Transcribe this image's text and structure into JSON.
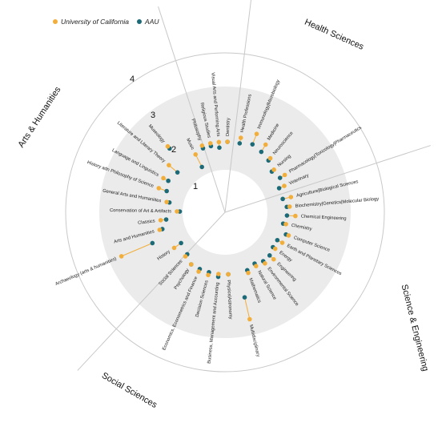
{
  "chart_data": {
    "type": "radial-dot",
    "legend": [
      {
        "name": "University of California",
        "color": "#f2ae3b"
      },
      {
        "name": "AAU",
        "color": "#1c6a77"
      }
    ],
    "ring_labels": [
      "1",
      "2",
      "3",
      "4"
    ],
    "groups": [
      {
        "name": "Health Sciences"
      },
      {
        "name": "Science & Engineering"
      },
      {
        "name": "Social Sciences"
      },
      {
        "name": "Arts & Humanities"
      }
    ],
    "categories": [
      {
        "label": "Dentistry",
        "angle": 2,
        "uc": 2.0,
        "aau": 2.0
      },
      {
        "label": "Health Professions",
        "angle": 12,
        "uc": 2.2,
        "aau": 2.0
      },
      {
        "label": "Immunology|Microbiology",
        "angle": 22,
        "uc": 2.5,
        "aau": 2.1
      },
      {
        "label": "Medicine",
        "angle": 31,
        "uc": 2.3,
        "aau": 2.0
      },
      {
        "label": "Neuroscience",
        "angle": 40,
        "uc": 2.0,
        "aau": 1.9
      },
      {
        "label": "Nursing",
        "angle": 49,
        "uc": 1.8,
        "aau": 1.7
      },
      {
        "label": "Pharmacology|Toxicology|Pharmaceutics",
        "angle": 58,
        "uc": 2.0,
        "aau": 1.8
      },
      {
        "label": "Veterinary",
        "angle": 66,
        "uc": 1.8,
        "aau": 1.6
      },
      {
        "label": "Agriculture|Biological Sciences",
        "angle": 77,
        "uc": 1.9,
        "aau": 1.6
      },
      {
        "label": "Biochemistry|Genetics|Molecular Biology",
        "angle": 85,
        "uc": 1.8,
        "aau": 1.7
      },
      {
        "label": "Chemical Engineering",
        "angle": 93,
        "uc": 2.0,
        "aau": 1.7
      },
      {
        "label": "Chemistry",
        "angle": 101,
        "uc": 1.7,
        "aau": 1.6
      },
      {
        "label": "Computer Science",
        "angle": 110,
        "uc": 1.9,
        "aau": 1.8
      },
      {
        "label": "Earth and Planetary Sciences",
        "angle": 118,
        "uc": 1.8,
        "aau": 1.6
      },
      {
        "label": "Energy",
        "angle": 126,
        "uc": 1.7,
        "aau": 1.6
      },
      {
        "label": "Engineering",
        "angle": 134,
        "uc": 1.9,
        "aau": 1.7
      },
      {
        "label": "Environmental Science",
        "angle": 142,
        "uc": 1.8,
        "aau": 1.7
      },
      {
        "label": "Natural Science",
        "angle": 150,
        "uc": 1.7,
        "aau": 1.6
      },
      {
        "label": "Mathematics",
        "angle": 159,
        "uc": 1.8,
        "aau": 1.7
      },
      {
        "label": "Multidisciplinary",
        "angle": 167,
        "uc": 3.4,
        "aau": 2.6
      },
      {
        "label": "Physics|Astronomy",
        "angle": 177,
        "uc": 1.7,
        "aau": 1.7
      },
      {
        "label": "Business, Management and Accounting",
        "angle": 186,
        "uc": 1.7,
        "aau": 1.8
      },
      {
        "label": "Decision Sciences",
        "angle": 195,
        "uc": 1.8,
        "aau": 1.7
      },
      {
        "label": "Economics, Econometrics and Finance",
        "angle": 204,
        "uc": 1.8,
        "aau": 1.7
      },
      {
        "label": "Psychology",
        "angle": 213,
        "uc": 1.7,
        "aau": 1.7
      },
      {
        "label": "Social Sciences",
        "angle": 222,
        "uc": 1.6,
        "aau": 1.5
      },
      {
        "label": "History",
        "angle": 235,
        "uc": 1.7,
        "aau": 1.4
      },
      {
        "label": "Archaeology (arts & humanities)",
        "angle": 247,
        "uc": 3.5,
        "aau": 2.3
      },
      {
        "label": "Arts and Humanities",
        "angle": 255,
        "uc": 1.9,
        "aau": 1.8
      },
      {
        "label": "Classics",
        "angle": 263,
        "uc": 1.8,
        "aau": 1.6
      },
      {
        "label": "Conservation of Art & Artifacts",
        "angle": 271,
        "uc": 1.2,
        "aau": 1.1
      },
      {
        "label": "General Arts and Humanities",
        "angle": 280,
        "uc": 1.6,
        "aau": 1.5
      },
      {
        "label": "History adn Philosophy of Science",
        "angle": 290,
        "uc": 2.0,
        "aau": 1.7
      },
      {
        "label": "Language and Linguistics",
        "angle": 299,
        "uc": 2.0,
        "aau": 1.8
      },
      {
        "label": "Literature and Literary Theory",
        "angle": 310,
        "uc": 2.1,
        "aau": 1.7
      },
      {
        "label": "Museology",
        "angle": 319,
        "uc": 2.6,
        "aau": 2.5
      },
      {
        "label": "Music",
        "angle": 333,
        "uc": 1.8,
        "aau": 1.3
      },
      {
        "label": "Philosophy",
        "angle": 341,
        "uc": 2.0,
        "aau": 1.9
      },
      {
        "label": "Religious Studies",
        "angle": 348,
        "uc": 2.0,
        "aau": 1.9
      },
      {
        "label": "Visual Arts and Performing Arts",
        "angle": 355,
        "uc": 2.0,
        "aau": 1.8
      }
    ]
  }
}
